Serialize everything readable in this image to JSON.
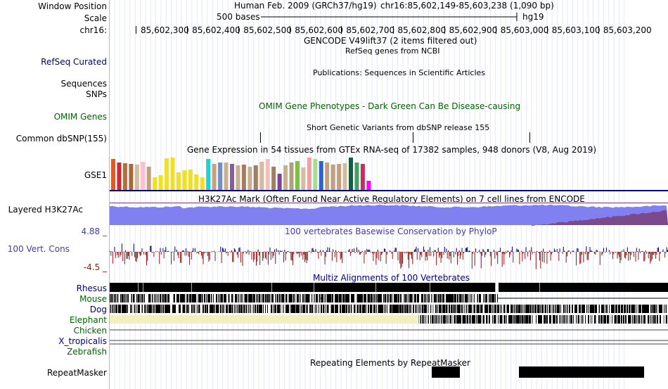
{
  "header": {
    "position_label": "Window Position",
    "position_text": "Human Feb. 2009 (GRCh37/hg19)",
    "position_coords": "chr16:85,602,149-85,603,238 (1,090 bp)",
    "scale_label": "Scale",
    "scale_bar_text": "500 bases",
    "assembly": "hg19",
    "chrom_label": "chr16:",
    "ticks": [
      "85,602,300",
      "85,602,400",
      "85,602,500",
      "85,602,600",
      "85,602,700",
      "85,602,800",
      "85,602,900",
      "85,603,000",
      "85,603,100",
      "85,603,200"
    ]
  },
  "tracks": {
    "gencode_title": "GENCODE V49lift37 (2 items filtered out)",
    "refseq_label": "RefSeq Curated",
    "refseq_title": "RefSeq genes from NCBI",
    "publications_title": "Publications: Sequences in Scientific Articles",
    "sequences_label": "Sequences",
    "snps_label": "SNPs",
    "omim_label": "OMIM Genes",
    "omim_title": "OMIM Gene Phenotypes - Dark Green Can Be Disease-causing",
    "dbsnp_title": "Short Genetic Variants from dbSNP release 155",
    "dbsnp_label": "Common dbSNP(155)",
    "gtex_title": "Gene Expression in 54 tissues from GTEx RNA-seq of 17382 samples, 948 donors (V8, Aug 2019)",
    "gse1_label": "GSE1",
    "h3k27_label": "Layered H3K27Ac",
    "h3k27_title": "H3K27Ac Mark (Often Found Near Active Regulatory Elements) on 7 cell lines from ENCODE",
    "cons_max": "4.88 _",
    "cons_label": "100 Vert. Cons",
    "cons_min": "-4.5 _",
    "cons_title": "100 vertebrates Basewise Conservation by PhyloP",
    "multiz_title": "Multiz Alignments of 100 Vertebrates",
    "species": [
      {
        "name": "Rhesus",
        "color": "#000080"
      },
      {
        "name": "Mouse",
        "color": "#006400"
      },
      {
        "name": "Dog",
        "color": "#000080"
      },
      {
        "name": "Elephant",
        "color": "#006400"
      },
      {
        "name": "Chicken",
        "color": "#006400"
      },
      {
        "name": "X_tropicalis",
        "color": "#000080"
      },
      {
        "name": "Zebrafish",
        "color": "#006400"
      }
    ],
    "repeat_title": "Repeating Elements by RepeatMasker",
    "repeat_label": "RepeatMasker"
  },
  "colors": {
    "gtex_bars": [
      "#e05a28",
      "#d9262a",
      "#b07040",
      "#a66a3e",
      "#d4bca0",
      "#ffc0cb",
      "#c0a080",
      "#f0e020",
      "#f0e020",
      "#f0e020",
      "#f0e020",
      "#f0e020",
      "#f0e020",
      "#f0e020",
      "#f0e020",
      "#f0e020",
      "#20d0d0",
      "#c8a080",
      "#7090c0",
      "#c8b090",
      "#8060a0",
      "#c8b090",
      "#a08060",
      "#c8b090",
      "#a08060",
      "#d4bca0",
      "#f0c0c0",
      "#a08060",
      "#8040a0",
      "#c8b090",
      "#b0a080",
      "#80c040",
      "#d4bca0",
      "#f0a0a0",
      "#a0e090",
      "#3060d0",
      "#c0a080",
      "#c0a080",
      "#c0a080",
      "#d4bca0",
      "#106040",
      "#40a060",
      "#c03060",
      "#ff00ff"
    ],
    "gtex_values": [
      0.95,
      0.85,
      0.82,
      0.8,
      0.78,
      0.88,
      0.72,
      0.4,
      0.45,
      0.98,
      0.99,
      0.55,
      0.6,
      0.62,
      0.48,
      0.4,
      0.95,
      0.8,
      0.85,
      0.85,
      0.8,
      0.75,
      0.78,
      0.72,
      0.75,
      0.88,
      0.95,
      0.72,
      0.5,
      0.75,
      0.85,
      0.9,
      0.7,
      0.99,
      0.95,
      0.9,
      0.85,
      0.78,
      0.8,
      0.82,
      0.99,
      0.85,
      0.8,
      0.28
    ],
    "h3k_blue": "#8080f0",
    "h3k_purple": "#7a3f7a",
    "cons_pos": "#000080",
    "cons_neg": "#8b1a1a"
  }
}
